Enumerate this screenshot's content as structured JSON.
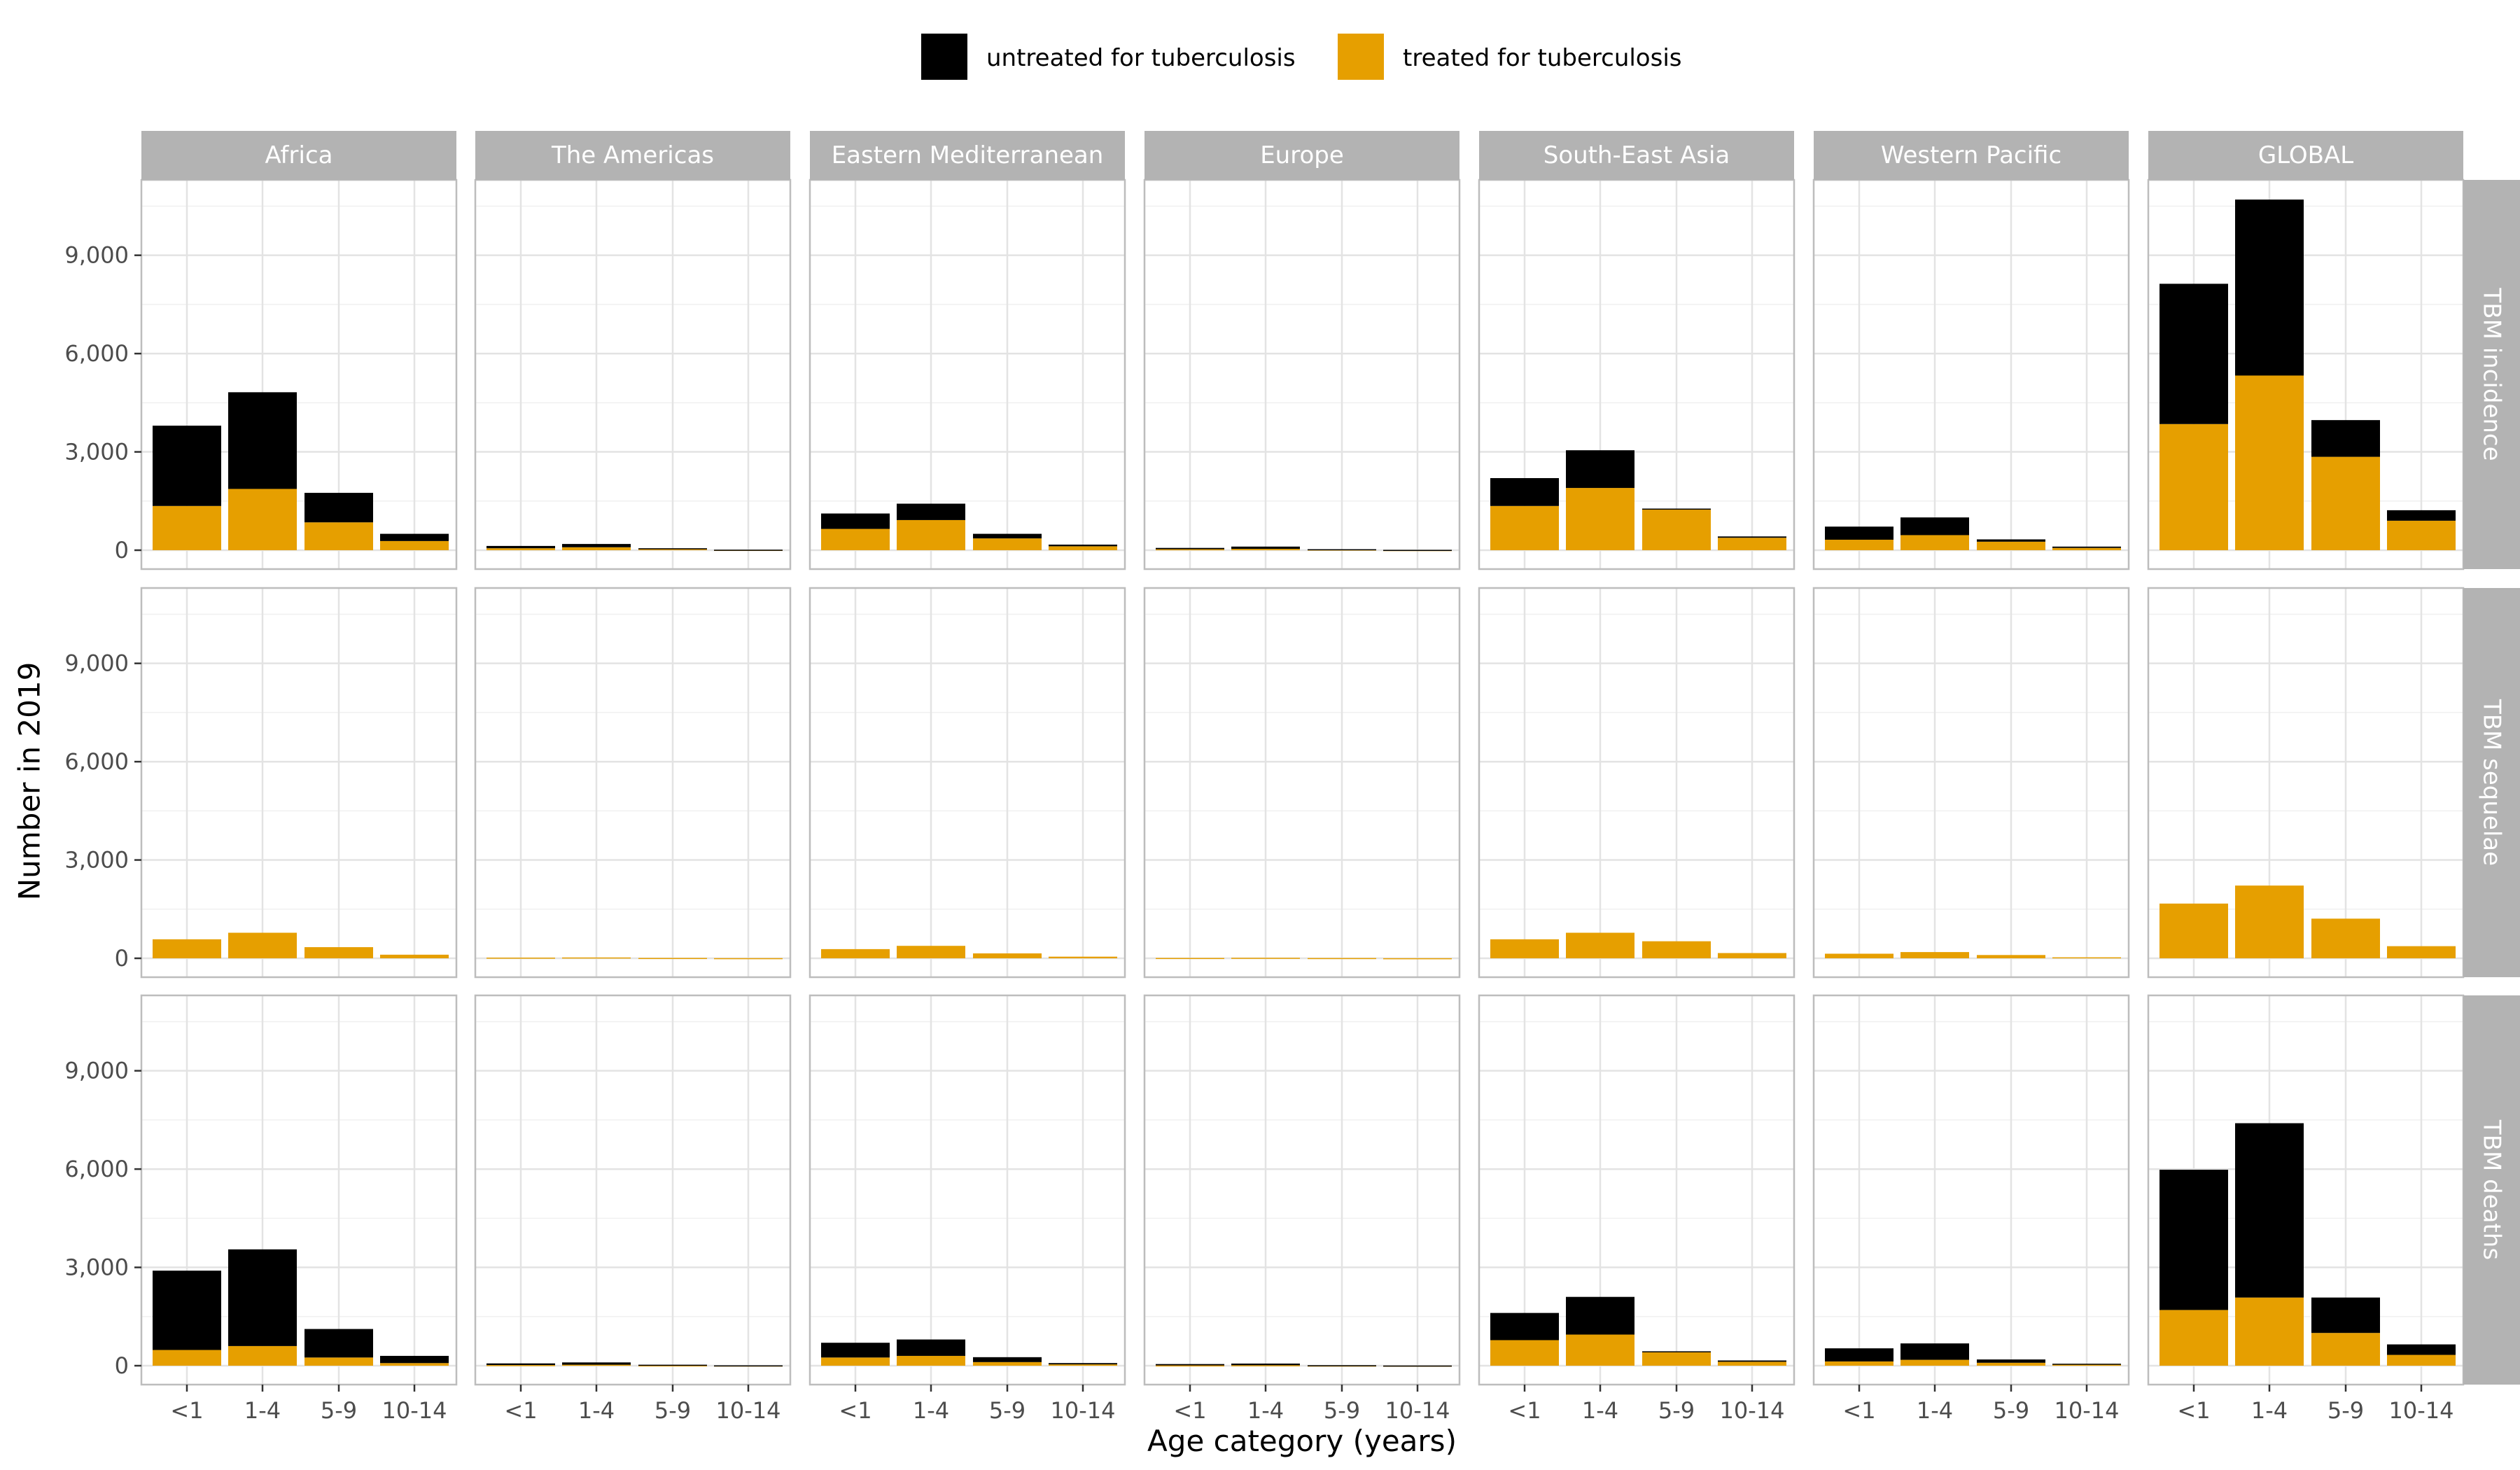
{
  "chart_data": {
    "type": "bar",
    "stacked": true,
    "xlabel": "Age category (years)",
    "ylabel": "Number in 2019",
    "ylim": [
      0,
      11300
    ],
    "yticks": [
      0,
      3000,
      6000,
      9000
    ],
    "ytick_labels": [
      "0",
      "3,000",
      "6,000",
      "9,000"
    ],
    "grid": true,
    "legend_position": "top",
    "categories": [
      "<1",
      "1-4",
      "5-9",
      "10-14"
    ],
    "series_keys": [
      "treated",
      "untreated"
    ],
    "legend": [
      {
        "key": "untreated",
        "name": "untreated for tuberculosis",
        "color": "#000000"
      },
      {
        "key": "treated",
        "name": "treated for tuberculosis",
        "color": "#E69F00"
      }
    ],
    "colors": {
      "treated": "#E69F00",
      "untreated": "#000000",
      "strip": "#B3B3B3",
      "panel_border": "#BDBDBD",
      "grid": "#E3E3E3"
    },
    "regions": [
      "Africa",
      "The Americas",
      "Eastern Mediterranean",
      "Europe",
      "South-East Asia",
      "Western Pacific",
      "GLOBAL"
    ],
    "measures": [
      "TBM incidence",
      "TBM sequelae",
      "TBM deaths"
    ],
    "values": {
      "TBM incidence": {
        "Africa": {
          "treated": [
            1350,
            1870,
            850,
            280
          ],
          "untreated": [
            2450,
            2950,
            900,
            220
          ]
        },
        "The Americas": {
          "treated": [
            60,
            90,
            40,
            10
          ],
          "untreated": [
            70,
            100,
            20,
            5
          ]
        },
        "Eastern Mediterranean": {
          "treated": [
            650,
            920,
            360,
            120
          ],
          "untreated": [
            470,
            500,
            140,
            50
          ]
        },
        "Europe": {
          "treated": [
            30,
            40,
            20,
            5
          ],
          "untreated": [
            40,
            70,
            10,
            5
          ]
        },
        "South-East Asia": {
          "treated": [
            1350,
            1900,
            1250,
            380
          ],
          "untreated": [
            850,
            1150,
            20,
            40
          ]
        },
        "Western Pacific": {
          "treated": [
            320,
            460,
            260,
            70
          ],
          "untreated": [
            400,
            540,
            70,
            40
          ]
        },
        "GLOBAL": {
          "treated": [
            3850,
            5330,
            2850,
            900
          ],
          "untreated": [
            4280,
            5370,
            1120,
            320
          ]
        }
      },
      "TBM sequelae": {
        "Africa": {
          "treated": [
            580,
            780,
            340,
            110
          ],
          "untreated": [
            0,
            0,
            0,
            0
          ]
        },
        "The Americas": {
          "treated": [
            20,
            25,
            10,
            5
          ],
          "untreated": [
            0,
            0,
            0,
            0
          ]
        },
        "Eastern Mediterranean": {
          "treated": [
            280,
            380,
            150,
            50
          ],
          "untreated": [
            0,
            0,
            0,
            0
          ]
        },
        "Europe": {
          "treated": [
            10,
            15,
            8,
            3
          ],
          "untreated": [
            0,
            0,
            0,
            0
          ]
        },
        "South-East Asia": {
          "treated": [
            580,
            780,
            520,
            160
          ],
          "untreated": [
            0,
            0,
            0,
            0
          ]
        },
        "Western Pacific": {
          "treated": [
            140,
            190,
            100,
            30
          ],
          "untreated": [
            0,
            0,
            0,
            0
          ]
        },
        "GLOBAL": {
          "treated": [
            1670,
            2220,
            1210,
            370
          ],
          "untreated": [
            0,
            0,
            0,
            0
          ]
        }
      },
      "TBM deaths": {
        "Africa": {
          "treated": [
            480,
            600,
            250,
            80
          ],
          "untreated": [
            2420,
            2950,
            870,
            220
          ]
        },
        "The Americas": {
          "treated": [
            20,
            30,
            10,
            5
          ],
          "untreated": [
            50,
            70,
            20,
            5
          ]
        },
        "Eastern Mediterranean": {
          "treated": [
            250,
            300,
            110,
            40
          ],
          "untreated": [
            450,
            500,
            150,
            40
          ]
        },
        "Europe": {
          "treated": [
            10,
            15,
            5,
            2
          ],
          "untreated": [
            40,
            50,
            10,
            3
          ]
        },
        "South-East Asia": {
          "treated": [
            780,
            950,
            420,
            120
          ],
          "untreated": [
            830,
            1150,
            20,
            40
          ]
        },
        "Western Pacific": {
          "treated": [
            130,
            180,
            90,
            30
          ],
          "untreated": [
            400,
            500,
            100,
            30
          ]
        },
        "GLOBAL": {
          "treated": [
            1700,
            2080,
            1000,
            330
          ],
          "untreated": [
            4280,
            5320,
            1080,
            320
          ]
        }
      }
    }
  }
}
